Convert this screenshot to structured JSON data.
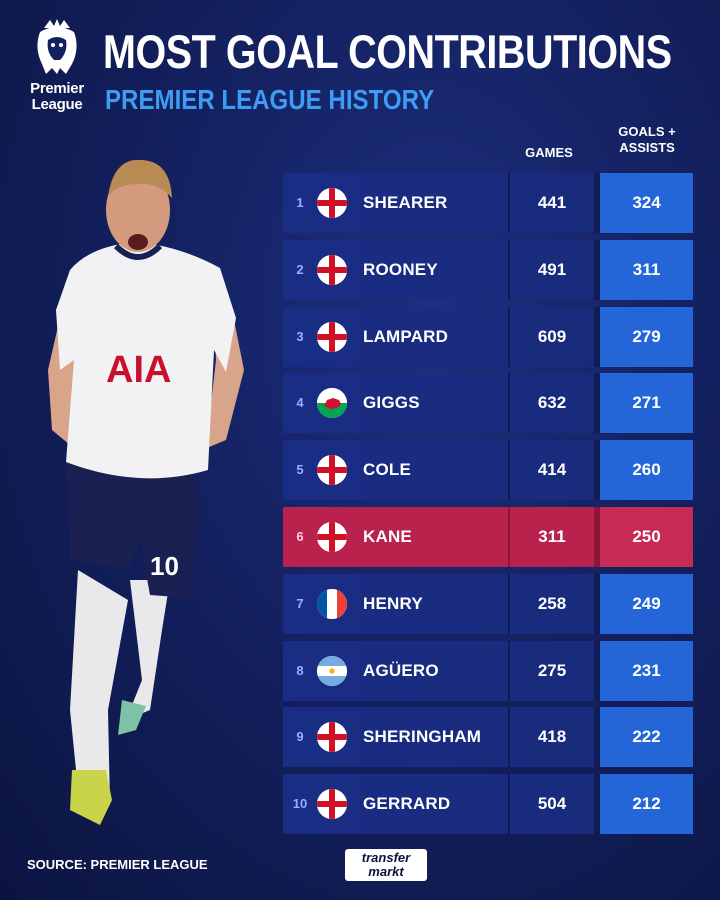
{
  "brand": {
    "logo_text_line1": "Premier",
    "logo_text_line2": "League"
  },
  "header": {
    "title": "MOST GOAL CONTRIBUTIONS",
    "subtitle": "PREMIER LEAGUE HISTORY",
    "col_games": "GAMES",
    "col_ga_line1": "GOALS +",
    "col_ga_line2": "ASSISTS"
  },
  "colors": {
    "accent_blue": "#3d9cf3",
    "row_blue": "#1a2d85",
    "ga_blue": "#2466d8",
    "highlight_red": "#b8224c"
  },
  "player": {
    "shirt_sponsor": "AIA",
    "shirt_number": "10"
  },
  "rows": [
    {
      "rank": "1",
      "flag": "england",
      "name": "SHEARER",
      "games": "441",
      "ga": "324"
    },
    {
      "rank": "2",
      "flag": "england",
      "name": "ROONEY",
      "games": "491",
      "ga": "311"
    },
    {
      "rank": "3",
      "flag": "england",
      "name": "LAMPARD",
      "games": "609",
      "ga": "279"
    },
    {
      "rank": "4",
      "flag": "wales",
      "name": "GIGGS",
      "games": "632",
      "ga": "271"
    },
    {
      "rank": "5",
      "flag": "england",
      "name": "COLE",
      "games": "414",
      "ga": "260"
    },
    {
      "rank": "6",
      "flag": "england",
      "name": "KANE",
      "games": "311",
      "ga": "250",
      "highlight": true
    },
    {
      "rank": "7",
      "flag": "france",
      "name": "HENRY",
      "games": "258",
      "ga": "249"
    },
    {
      "rank": "8",
      "flag": "argentina",
      "name": "AGÜERO",
      "games": "275",
      "ga": "231"
    },
    {
      "rank": "9",
      "flag": "england",
      "name": "SHERINGHAM",
      "games": "418",
      "ga": "222"
    },
    {
      "rank": "10",
      "flag": "england",
      "name": "GERRARD",
      "games": "504",
      "ga": "212"
    }
  ],
  "footer": {
    "source": "SOURCE: PREMIER LEAGUE",
    "tm_line1": "transfer",
    "tm_line2": "markt"
  }
}
